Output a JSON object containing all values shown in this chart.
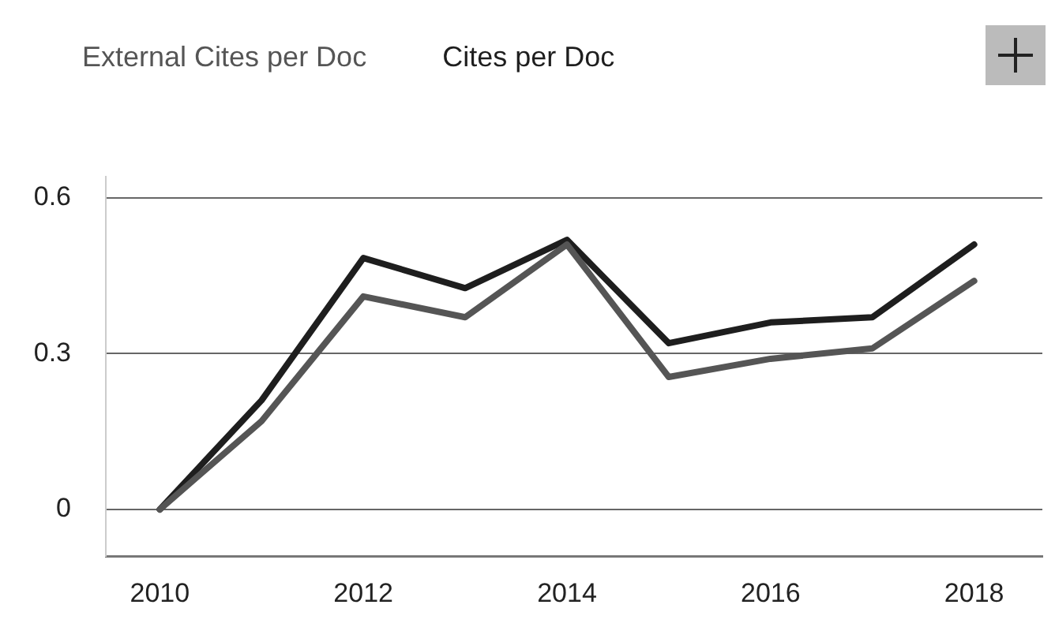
{
  "chart_data": {
    "type": "line",
    "x": [
      2010,
      2011,
      2012,
      2013,
      2014,
      2015,
      2016,
      2017,
      2018
    ],
    "series": [
      {
        "name": "External Cites per Doc",
        "color": "#555555",
        "values": [
          0,
          0.17,
          0.41,
          0.37,
          0.51,
          0.255,
          0.29,
          0.31,
          0.44
        ]
      },
      {
        "name": "Cites per Doc",
        "color": "#1e1e1e",
        "values": [
          0,
          0.21,
          0.484,
          0.426,
          0.519,
          0.32,
          0.36,
          0.37,
          0.51
        ]
      }
    ],
    "xlim": [
      2009.47,
      2018.67
    ],
    "xticks": [
      2010,
      2012,
      2014,
      2016,
      2018
    ],
    "ylim": [
      -0.09,
      0.64
    ],
    "yticks": [
      0,
      0.3,
      0.6
    ],
    "grid": "y",
    "legend": "top left",
    "marker": "none",
    "line_style": "solid"
  }
}
